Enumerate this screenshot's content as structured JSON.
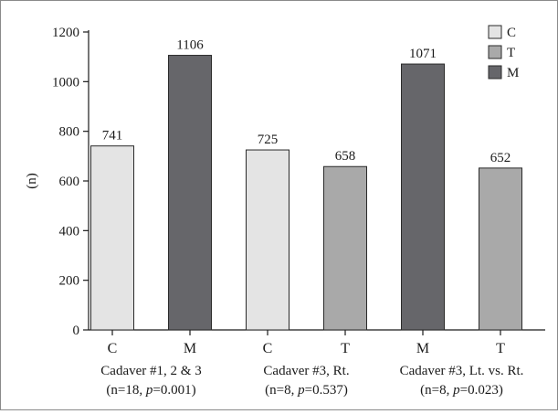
{
  "chart_data": {
    "type": "bar",
    "ylabel": "(n)",
    "ylim": [
      0,
      1200
    ],
    "yticks": [
      0,
      200,
      400,
      600,
      800,
      1000,
      1200
    ],
    "ytick_labels": [
      "0",
      "200",
      "400",
      "600",
      "800",
      "1000",
      "1200"
    ],
    "grid": false,
    "legend_position": "top-right",
    "categories": [
      "C",
      "M",
      "C",
      "T",
      "M",
      "T"
    ],
    "values": [
      741,
      1106,
      725,
      658,
      1071,
      652
    ],
    "value_labels": [
      "741",
      "1106",
      "725",
      "658",
      "1071",
      "652"
    ],
    "bar_types": [
      "C",
      "M",
      "C",
      "T",
      "M",
      "T"
    ],
    "groups": [
      {
        "line1": "Cadaver #1, 2 & 3",
        "line2_pre": "(n=18, ",
        "line2_p": "p",
        "line2_post": "=0.001)",
        "span": [
          0,
          1
        ]
      },
      {
        "line1": "Cadaver #3, Rt.",
        "line2_pre": "(n=8, ",
        "line2_p": "p",
        "line2_post": "=0.537)",
        "span": [
          2,
          3
        ]
      },
      {
        "line1": "Cadaver #3, Lt. vs. Rt.",
        "line2_pre": "(n=8, ",
        "line2_p": "p",
        "line2_post": "=0.023)",
        "span": [
          4,
          5
        ]
      }
    ],
    "legend": [
      {
        "key": "C",
        "label": "C",
        "color": "#e4e4e4"
      },
      {
        "key": "T",
        "label": "T",
        "color": "#a9a9a9"
      },
      {
        "key": "M",
        "label": "M",
        "color": "#66666a"
      }
    ],
    "colors": {
      "C": "#e4e4e4",
      "T": "#a9a9a9",
      "M": "#66666a",
      "bar_stroke": "#2a2a2a",
      "axis": "#1a1a1a"
    }
  }
}
